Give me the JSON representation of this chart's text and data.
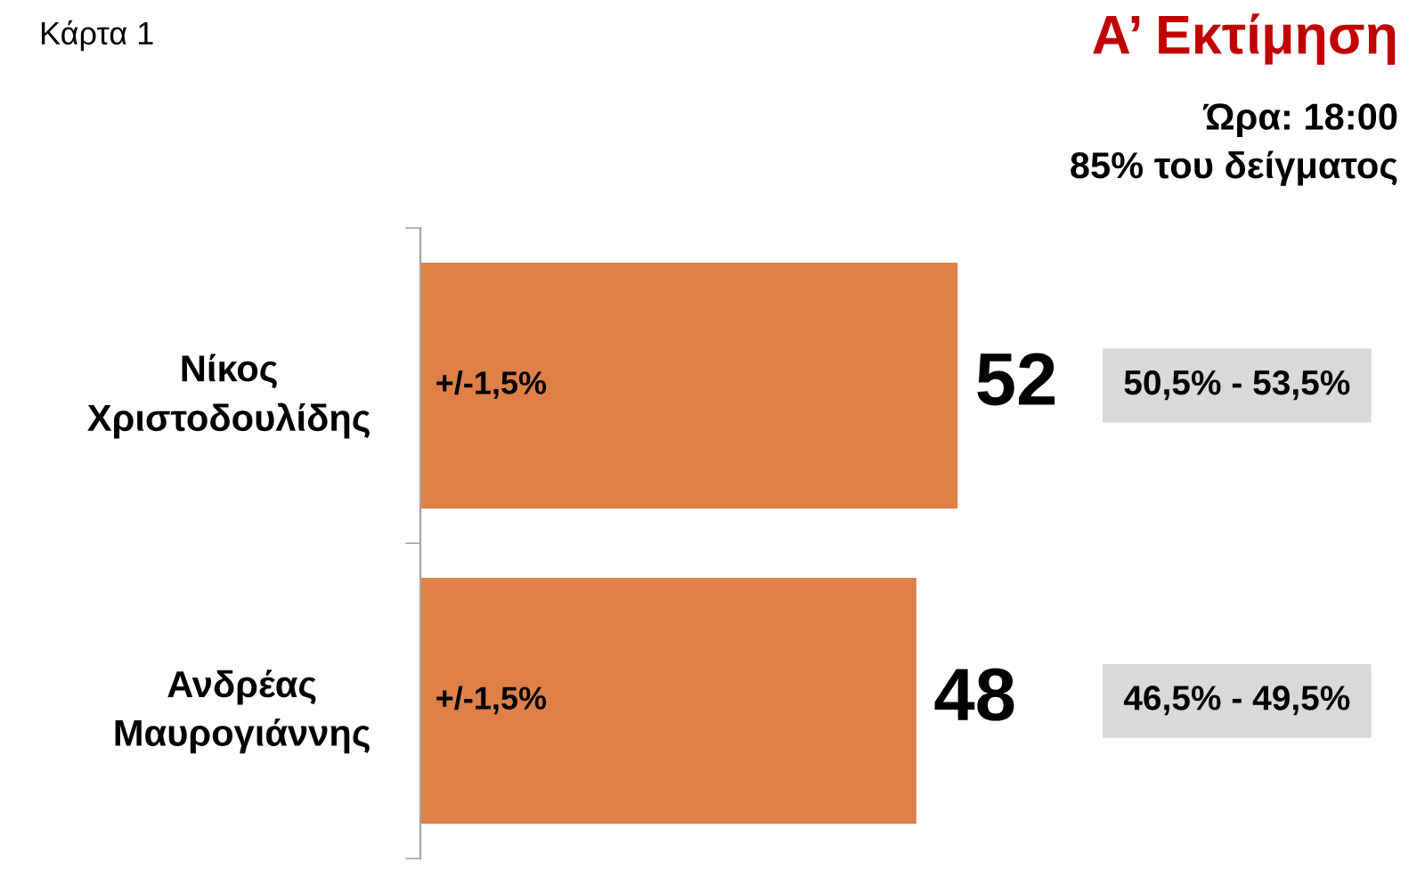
{
  "chart_data": {
    "type": "bar",
    "orientation": "horizontal",
    "title": "Α’ Εκτίμηση",
    "subtitle": "Ώρα: 18:00\n85% του δείγματος",
    "categories": [
      "Νίκος\nΧριστοδουλίδης",
      "Ανδρέας\nΜαυρογιάννης"
    ],
    "values": [
      52,
      48
    ],
    "color": "#df8049",
    "data_labels": true,
    "tick_labels": "y",
    "annotations": [
      "Κάρτα 1",
      {
        "text": "+/-1,5%",
        "x": 0,
        "y": "Νίκος\nΧριστοδουλίδης"
      },
      {
        "text": "+/-1,5%",
        "x": 0,
        "y": "Ανδρέας\nΜαυρογιάννης"
      },
      "50,5% - 53,5%",
      "46,5% - 49,5%"
    ]
  }
}
